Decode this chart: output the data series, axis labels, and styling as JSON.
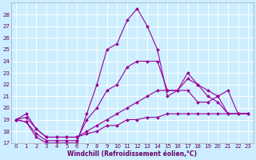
{
  "xlabel": "Windchill (Refroidissement éolien,°C)",
  "bg_color": "#cceeff",
  "grid_color": "#ffffff",
  "line_color": "#990099",
  "xlim": [
    -0.5,
    23.5
  ],
  "ylim": [
    17,
    29
  ],
  "yticks": [
    17,
    18,
    19,
    20,
    21,
    22,
    23,
    24,
    25,
    26,
    27,
    28
  ],
  "xticks": [
    0,
    1,
    2,
    3,
    4,
    5,
    6,
    7,
    8,
    9,
    10,
    11,
    12,
    13,
    14,
    15,
    16,
    17,
    18,
    19,
    20,
    21,
    22,
    23
  ],
  "series": [
    {
      "x": [
        0,
        1,
        2,
        3,
        4,
        5,
        6,
        7,
        8,
        9,
        10,
        11,
        12,
        13,
        14,
        15,
        16,
        17,
        18,
        19,
        20,
        21,
        22,
        23
      ],
      "y": [
        19.0,
        18.8,
        17.5,
        17.0,
        17.0,
        17.0,
        17.0,
        19.5,
        22.0,
        25.0,
        25.5,
        27.5,
        28.5,
        27.0,
        25.0,
        21.0,
        21.5,
        23.0,
        22.0,
        21.0,
        20.5,
        19.5,
        19.5,
        19.5
      ]
    },
    {
      "x": [
        0,
        1,
        2,
        3,
        4,
        5,
        6,
        7,
        8,
        9,
        10,
        11,
        12,
        13,
        14,
        15,
        16,
        17,
        18,
        19,
        20,
        21,
        22,
        23
      ],
      "y": [
        19.0,
        18.8,
        17.8,
        17.2,
        17.2,
        17.2,
        17.2,
        19.0,
        20.0,
        21.5,
        22.0,
        23.5,
        24.0,
        24.0,
        24.0,
        21.5,
        21.5,
        22.5,
        22.0,
        21.5,
        21.0,
        19.5,
        19.5,
        19.5
      ]
    },
    {
      "x": [
        0,
        1,
        2,
        3,
        4,
        5,
        6,
        7,
        8,
        9,
        10,
        11,
        12,
        13,
        14,
        15,
        16,
        17,
        18,
        19,
        20,
        21,
        22,
        23
      ],
      "y": [
        19.0,
        19.2,
        18.2,
        17.5,
        17.5,
        17.5,
        17.5,
        18.0,
        18.5,
        19.0,
        19.5,
        20.0,
        20.5,
        21.0,
        21.5,
        21.5,
        21.5,
        21.5,
        20.5,
        20.5,
        21.0,
        21.5,
        19.5,
        19.5
      ]
    },
    {
      "x": [
        0,
        1,
        2,
        3,
        4,
        5,
        6,
        7,
        8,
        9,
        10,
        11,
        12,
        13,
        14,
        15,
        16,
        17,
        18,
        19,
        20,
        21,
        22,
        23
      ],
      "y": [
        19.0,
        19.5,
        18.2,
        17.5,
        17.5,
        17.5,
        17.5,
        17.8,
        18.0,
        18.5,
        18.5,
        19.0,
        19.0,
        19.2,
        19.2,
        19.5,
        19.5,
        19.5,
        19.5,
        19.5,
        19.5,
        19.5,
        19.5,
        19.5
      ]
    }
  ],
  "markersize": 2.0,
  "linewidth": 0.8,
  "tick_labelsize": 5.0,
  "xlabel_fontsize": 5.5,
  "tick_color": "#660066",
  "xlabel_color": "#660066"
}
